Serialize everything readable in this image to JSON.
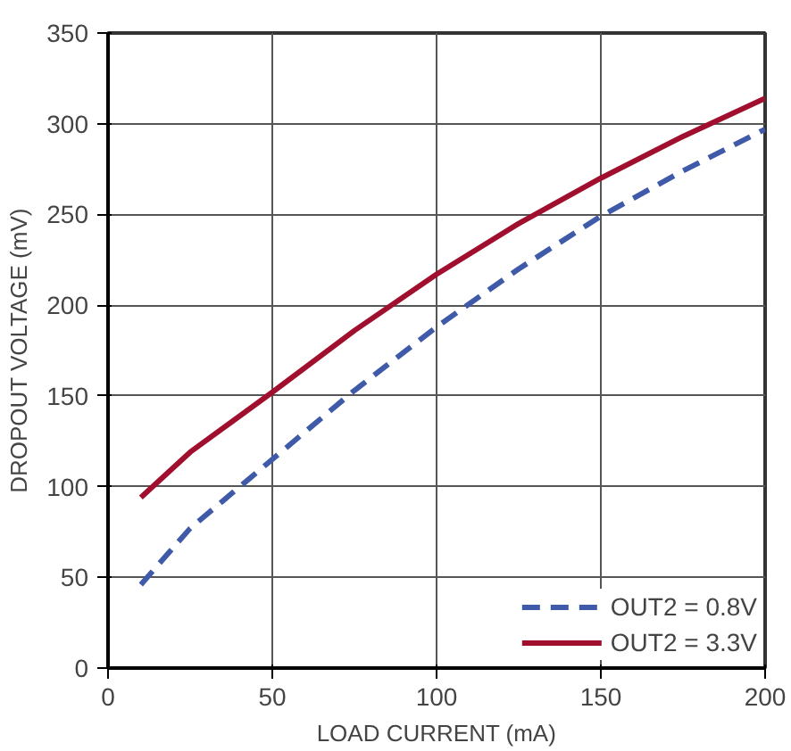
{
  "chart_data": {
    "type": "line",
    "xlabel": "LOAD CURRENT (mA)",
    "ylabel": "DROPOUT VOLTAGE (mV)",
    "x": [
      10,
      25,
      50,
      75,
      100,
      125,
      150,
      175,
      200
    ],
    "series": [
      {
        "name": "OUT2 = 0.8V",
        "color": "#3f5aa8",
        "line_style": "dashed",
        "values": [
          46,
          77,
          115,
          153,
          188,
          220,
          249,
          274,
          297
        ]
      },
      {
        "name": "OUT2 = 3.3V",
        "color": "#a0102e",
        "line_style": "solid",
        "values": [
          94,
          119,
          152,
          186,
          217,
          245,
          270,
          293,
          314
        ]
      }
    ],
    "xlim": [
      0,
      200
    ],
    "xticks": [
      0,
      50,
      100,
      150,
      200
    ],
    "ylim": [
      0,
      350
    ],
    "yticks": [
      0,
      50,
      100,
      150,
      200,
      250,
      300,
      350
    ],
    "grid": true,
    "legend": "bottom right",
    "marker": "none"
  }
}
